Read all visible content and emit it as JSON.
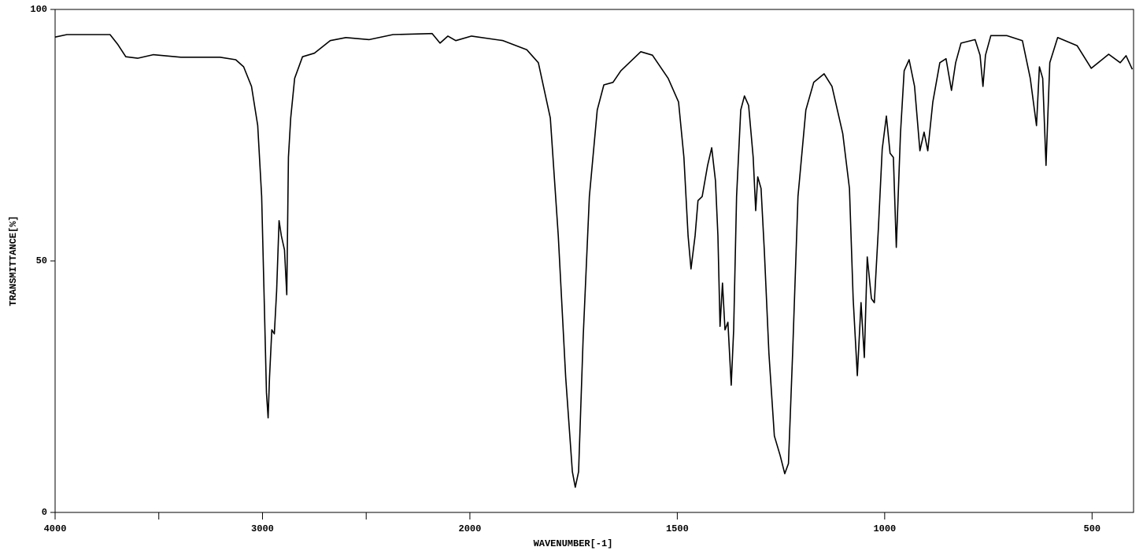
{
  "chart_data": {
    "type": "line",
    "x_label": "WAVENUMBER[-1]",
    "y_label": "TRANSMITTANCE[%]",
    "color": "#000000",
    "xlim": [
      4000,
      400
    ],
    "x_break": 2000,
    "x_break_scale": 2,
    "xticks": [
      4000,
      3000,
      2000,
      1500,
      1000,
      500
    ],
    "xminorticks": [
      3500,
      2500
    ],
    "ylim": [
      0,
      100
    ],
    "yticks": [
      0,
      50,
      100
    ],
    "x": [
      4000,
      3943,
      3735,
      3697,
      3659,
      3602,
      3527,
      3394,
      3205,
      3129,
      3091,
      3053,
      3023,
      3004,
      2992,
      2981,
      2973,
      2966,
      2955,
      2943,
      2932,
      2920,
      2909,
      2894,
      2883,
      2875,
      2864,
      2845,
      2807,
      2750,
      2674,
      2598,
      2485,
      2371,
      2182,
      2144,
      2106,
      2068,
      1996,
      1920,
      1863,
      1835,
      1806,
      1787,
      1769,
      1753,
      1746,
      1738,
      1727,
      1712,
      1693,
      1677,
      1655,
      1636,
      1588,
      1560,
      1522,
      1497,
      1484,
      1474,
      1467,
      1457,
      1450,
      1440,
      1427,
      1417,
      1408,
      1402,
      1397,
      1391,
      1385,
      1378,
      1370,
      1364,
      1357,
      1347,
      1338,
      1328,
      1317,
      1311,
      1306,
      1298,
      1290,
      1279,
      1266,
      1252,
      1241,
      1232,
      1222,
      1209,
      1190,
      1171,
      1146,
      1127,
      1101,
      1085,
      1076,
      1066,
      1057,
      1049,
      1042,
      1032,
      1025,
      1015,
      1006,
      996,
      987,
      979,
      972,
      962,
      953,
      941,
      928,
      915,
      905,
      896,
      884,
      867,
      852,
      839,
      829,
      816,
      782,
      770,
      763,
      757,
      744,
      706,
      668,
      649,
      634,
      627,
      619,
      611,
      602,
      583,
      536,
      502,
      460,
      432,
      418,
      403
    ],
    "values": [
      94.5,
      95,
      95,
      93,
      90.6,
      90.3,
      91,
      90.5,
      90.5,
      90,
      88.6,
      84.7,
      76.9,
      62.8,
      42.5,
      23.8,
      18.8,
      26.9,
      36.3,
      35.5,
      44,
      58,
      55,
      52.2,
      43.3,
      70.6,
      78.4,
      86.3,
      90.6,
      91.3,
      93.8,
      94.4,
      94,
      95,
      95.2,
      93.3,
      94.7,
      93.8,
      94.7,
      93.8,
      92,
      89.4,
      78.4,
      55,
      26.9,
      8.1,
      5,
      8.1,
      34.7,
      62.8,
      80,
      85,
      85.5,
      87.8,
      91.6,
      90.9,
      86.3,
      81.6,
      70.6,
      55,
      48.4,
      55,
      62,
      62.8,
      69,
      72.5,
      65.9,
      55,
      37,
      45.6,
      36.3,
      37.8,
      25.3,
      36.3,
      62.8,
      80,
      82.8,
      80.9,
      70.6,
      60,
      66.7,
      64.4,
      51.9,
      31.6,
      15.2,
      11.3,
      7.7,
      9.7,
      31.6,
      62.8,
      80,
      85.5,
      87.2,
      84.7,
      75.3,
      64.4,
      42.5,
      27.2,
      41.7,
      30.8,
      50.8,
      42.5,
      41.7,
      56.6,
      72.2,
      78.8,
      71.4,
      70.6,
      52.7,
      75.3,
      87.8,
      90,
      84.7,
      71.9,
      75.6,
      71.9,
      81.6,
      89.4,
      90.2,
      83.9,
      89.4,
      93.3,
      94,
      90.9,
      84.7,
      90.9,
      94.8,
      94.8,
      93.8,
      86.3,
      76.9,
      88.6,
      86.3,
      69,
      89.4,
      94.4,
      92.8,
      88.3,
      91.1,
      89.4,
      90.8,
      88.1
    ]
  }
}
